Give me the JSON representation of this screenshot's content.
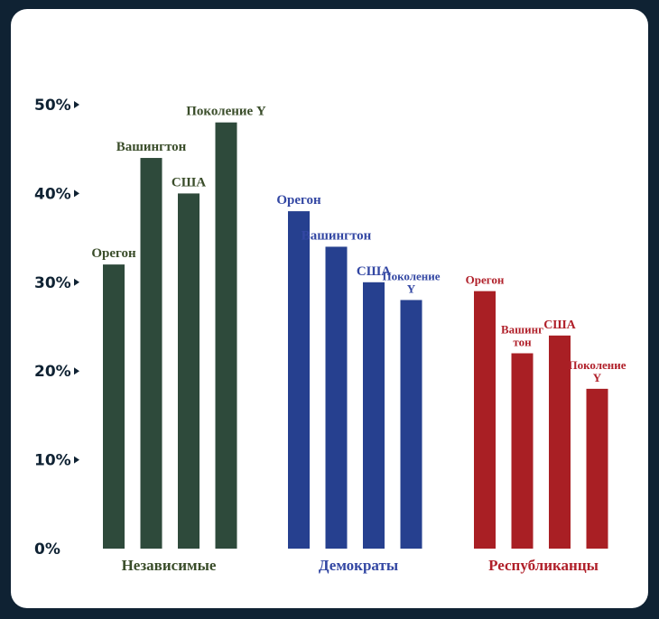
{
  "chart_data": {
    "type": "bar",
    "title": "",
    "xlabel": "",
    "ylabel": "",
    "ylim": [
      0,
      50
    ],
    "yticks": [
      {
        "value": 0,
        "label": "0%"
      },
      {
        "value": 10,
        "label": "10%"
      },
      {
        "value": 20,
        "label": "20%"
      },
      {
        "value": 30,
        "label": "30%"
      },
      {
        "value": 40,
        "label": "40%"
      },
      {
        "value": 50,
        "label": "50%"
      }
    ],
    "grid": false,
    "groups": [
      {
        "name": "Независимые",
        "color": "#2e4a3b",
        "labelColor": "#3a4d2a",
        "bars": [
          {
            "label": "Орегон",
            "value": 32
          },
          {
            "label": "Вашингтон",
            "value": 44
          },
          {
            "label": "США",
            "value": 40
          },
          {
            "label": "Поколение Y",
            "value": 48
          }
        ]
      },
      {
        "name": "Демократы",
        "color": "#26408f",
        "labelColor": "#3347a3",
        "bars": [
          {
            "label": "Орегон",
            "value": 38
          },
          {
            "label": "Вашингтон",
            "value": 34
          },
          {
            "label": "США",
            "value": 30
          },
          {
            "label": "Поколение Y",
            "value": 28
          }
        ]
      },
      {
        "name": "Республиканцы",
        "color": "#a91f24",
        "labelColor": "#b0202a",
        "bars": [
          {
            "label": "Орегон",
            "value": 29
          },
          {
            "label": "Вашингтон",
            "value": 22
          },
          {
            "label": "США",
            "value": 24
          },
          {
            "label": "Поколение Y",
            "value": 18
          }
        ]
      }
    ]
  }
}
